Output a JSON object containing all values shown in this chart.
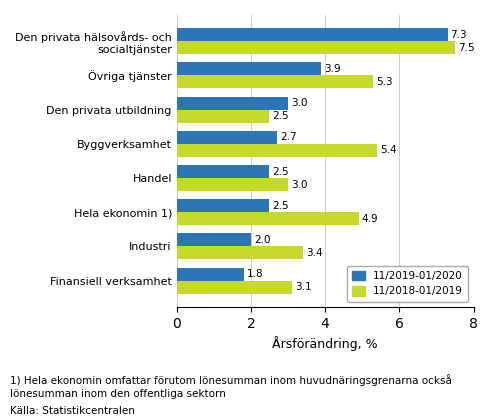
{
  "categories": [
    "Den privata hälsovårds- och\nsocialtjänster",
    "Övriga tjänster",
    "Den privata utbildning",
    "Byggverksamhet",
    "Handel",
    "Hela ekonomin 1)",
    "Industri",
    "Finansiell verksamhet"
  ],
  "series1_label": "11/2019-01/2020",
  "series2_label": "11/2018-01/2019",
  "series1_values": [
    7.3,
    3.9,
    3.0,
    2.7,
    2.5,
    2.5,
    2.0,
    1.8
  ],
  "series2_values": [
    7.5,
    5.3,
    2.5,
    5.4,
    3.0,
    4.9,
    3.4,
    3.1
  ],
  "color1": "#2E75B6",
  "color2": "#C5D92D",
  "xlabel": "Årsförändring, %",
  "xlim": [
    0,
    8
  ],
  "xticks": [
    0,
    2,
    4,
    6,
    8
  ],
  "bar_height": 0.38,
  "footnote1": "1) Hela ekonomin omfattar förutom lönesumman inom huvudnäringsgrenarna också",
  "footnote2": "lönesumman inom den offentliga sektorn",
  "footnote3": "Källa: Statistikcentralen",
  "background_color": "#ffffff",
  "label_fontsize": 7.5,
  "tick_fontsize": 8,
  "xlabel_fontsize": 9,
  "legend_fontsize": 7.5,
  "footnote_fontsize": 7.5
}
